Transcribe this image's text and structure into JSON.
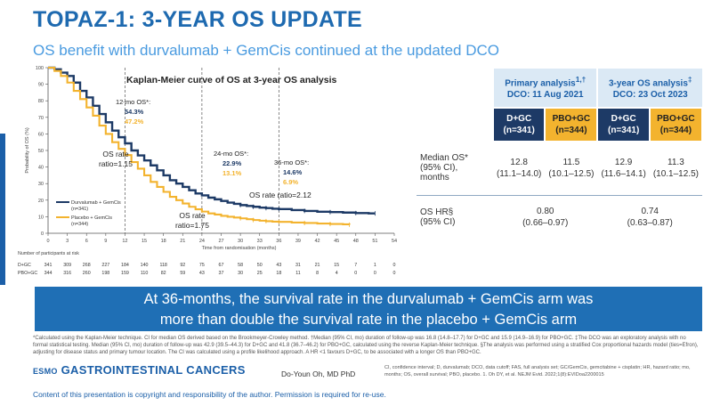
{
  "slide": {
    "title": "TOPAZ-1: 3-YEAR OS UPDATE",
    "subtitle": "OS benefit with durvalumab + GemCis continued at the updated DCO",
    "banner_line1": "At 36-months, the survival rate in the durvalumab + GemCis arm was",
    "banner_line2": "more than double the survival rate in the placebo + GemCis arm",
    "footnote": "*Calculated using the Kaplan-Meier technique. CI for median OS derived based on the Brookmeyer-Crowley method. †Median (95% CI, mo) duration of follow-up was 16.8 (14.8–17.7) for D+GC and 15.9 (14.9–16.9) for PBO+GC. ‡The DCO was an exploratory analysis with no formal statistical testing. Median (95% CI, mo) duration of follow-up was 42.9 (39.5–44.3) for D+GC and 41.8 (36.7–46.2) for PBO+GC, calculated using the reverse Kaplan-Meier technique. §The analysis was performed using a stratified Cox proportional hazards model (ties=Efron), adjusting for disease status and primary tumour location. The CI was calculated using a profile likelihood approach. A HR <1 favours D+GC, to be associated with a longer OS than PBO+GC.",
    "brand_prefix": "ESMO",
    "brand_name": "GASTROINTESTINAL CANCERS",
    "presenter": "Do-Youn Oh, MD PhD",
    "abbreviations": "CI, confidence interval; D, durvalumab; DCO, data cutoff; FAS, full analysis set; GC/GemCis, gemcitabine + cisplatin; HR, hazard ratio; mo, months; OS, overall survival; PBO, placebo. 1. Oh DY, et al. NEJM Evid. 2022;1(8):EVIDoa2200015",
    "copyright": "Content of this presentation is copyright and responsibility of the author. Permission is required for re-use."
  },
  "colors": {
    "durvalumab": "#1d3a66",
    "placebo": "#f3b32e",
    "title": "#1e6ab0",
    "banner": "#1f6fb5"
  },
  "chart_data": {
    "type": "line",
    "title": "Kaplan-Meier curve of OS at 3-year OS analysis",
    "xlabel": "Time from randomisation (months)",
    "ylabel": "Probability of OS (%)",
    "xlim": [
      0,
      54
    ],
    "ylim": [
      0,
      100
    ],
    "x_ticks": [
      0,
      3,
      6,
      9,
      12,
      15,
      18,
      21,
      24,
      27,
      30,
      33,
      36,
      39,
      42,
      45,
      48,
      51,
      54
    ],
    "y_ticks": [
      0,
      10,
      20,
      30,
      40,
      50,
      60,
      70,
      80,
      90,
      100
    ],
    "series": [
      {
        "name": "Durvalumab + GemCis",
        "n": "(n=341)",
        "color": "#1d3a66",
        "points": [
          [
            0,
            100
          ],
          [
            1,
            99
          ],
          [
            2,
            97
          ],
          [
            3,
            95
          ],
          [
            4,
            91
          ],
          [
            5,
            86
          ],
          [
            6,
            82
          ],
          [
            7,
            77
          ],
          [
            8,
            72
          ],
          [
            9,
            67
          ],
          [
            10,
            62
          ],
          [
            11,
            58
          ],
          [
            12,
            54.3
          ],
          [
            13,
            50
          ],
          [
            14,
            47
          ],
          [
            15,
            44
          ],
          [
            16,
            41
          ],
          [
            17,
            38
          ],
          [
            18,
            35
          ],
          [
            19,
            32
          ],
          [
            20,
            30
          ],
          [
            21,
            28
          ],
          [
            22,
            26
          ],
          [
            23,
            24
          ],
          [
            24,
            22.9
          ],
          [
            25,
            21.5
          ],
          [
            26,
            20.5
          ],
          [
            27,
            19.5
          ],
          [
            28,
            18.5
          ],
          [
            29,
            17.8
          ],
          [
            30,
            17
          ],
          [
            31,
            16.5
          ],
          [
            32,
            16
          ],
          [
            33,
            15.5
          ],
          [
            34,
            15.2
          ],
          [
            35,
            14.8
          ],
          [
            36,
            14.6
          ],
          [
            38,
            14
          ],
          [
            40,
            13.5
          ],
          [
            42,
            13
          ],
          [
            44,
            12.8
          ],
          [
            46,
            12.5
          ],
          [
            48,
            12.2
          ],
          [
            50,
            12
          ],
          [
            51,
            12
          ]
        ]
      },
      {
        "name": "Placebo + GemCis",
        "n": "(n=344)",
        "color": "#f3b32e",
        "points": [
          [
            0,
            100
          ],
          [
            1,
            98
          ],
          [
            2,
            95
          ],
          [
            3,
            91
          ],
          [
            4,
            86
          ],
          [
            5,
            81
          ],
          [
            6,
            76
          ],
          [
            7,
            71
          ],
          [
            8,
            65
          ],
          [
            9,
            60
          ],
          [
            10,
            55
          ],
          [
            11,
            51
          ],
          [
            12,
            47.2
          ],
          [
            13,
            43
          ],
          [
            14,
            39
          ],
          [
            15,
            35
          ],
          [
            16,
            31
          ],
          [
            17,
            28
          ],
          [
            18,
            25
          ],
          [
            19,
            22
          ],
          [
            20,
            20
          ],
          [
            21,
            18
          ],
          [
            22,
            16
          ],
          [
            23,
            14.5
          ],
          [
            24,
            13.1
          ],
          [
            25,
            12
          ],
          [
            26,
            11.3
          ],
          [
            27,
            10.5
          ],
          [
            28,
            10
          ],
          [
            29,
            9.5
          ],
          [
            30,
            9
          ],
          [
            31,
            8.5
          ],
          [
            32,
            8
          ],
          [
            33,
            7.6
          ],
          [
            34,
            7.3
          ],
          [
            35,
            7
          ],
          [
            36,
            6.9
          ],
          [
            38,
            6.5
          ],
          [
            40,
            6.2
          ],
          [
            42,
            5.9
          ],
          [
            44,
            5.6
          ],
          [
            46,
            5.4
          ],
          [
            47,
            5.2
          ]
        ]
      }
    ],
    "annotations": [
      {
        "label": "12-mo OS*:",
        "d": "54.3%",
        "p": "47.2%"
      },
      {
        "label": "24-mo OS*:",
        "d": "22.9%",
        "p": "13.1%"
      },
      {
        "label": "36-mo OS*:",
        "d": "14.6%",
        "p": "6.9%"
      }
    ],
    "rate_ratios": [
      {
        "line1": "OS rate",
        "line2": "ratio=1.15"
      },
      {
        "line1": "OS rate",
        "line2": "ratio=1.75"
      },
      {
        "line1": "OS rate ratio=2.12",
        "line2": ""
      }
    ],
    "risk_table": {
      "title": "Number of participants at risk",
      "rows": [
        {
          "label": "D+GC",
          "values": [
            341,
            309,
            268,
            227,
            184,
            140,
            118,
            92,
            75,
            67,
            58,
            50,
            43,
            31,
            21,
            15,
            7,
            1,
            0
          ]
        },
        {
          "label": "PBO+GC",
          "values": [
            344,
            316,
            260,
            198,
            159,
            110,
            82,
            59,
            43,
            37,
            30,
            25,
            18,
            11,
            8,
            4,
            0,
            0,
            0
          ]
        }
      ]
    }
  },
  "table": {
    "col_groups": [
      {
        "line1": "Primary analysis",
        "sup": "1,†",
        "line2": "DCO: 11 Aug 2021"
      },
      {
        "line1": "3-year OS analysis",
        "sup": "‡",
        "line2": "DCO: 23 Oct 2023"
      }
    ],
    "arms": [
      {
        "line1": "D+GC",
        "line2": "(n=341)",
        "style": "blue"
      },
      {
        "line1": "PBO+GC",
        "line2": "(n=344)",
        "style": "gold"
      },
      {
        "line1": "D+GC",
        "line2": "(n=341)",
        "style": "blue"
      },
      {
        "line1": "PBO+GC",
        "line2": "(n=344)",
        "style": "gold"
      }
    ],
    "median_os": {
      "label1": "Median OS*",
      "label2": "(95% CI),",
      "label3": "months",
      "values": [
        {
          "v": "12.8",
          "ci": "(11.1–14.0)"
        },
        {
          "v": "11.5",
          "ci": "(10.1–12.5)"
        },
        {
          "v": "12.9",
          "ci": "(11.6–14.1)"
        },
        {
          "v": "11.3",
          "ci": "(10.1–12.5)"
        }
      ]
    },
    "os_hr": {
      "label1": "OS HR§",
      "label2": "(95% CI)",
      "values": [
        {
          "v": "0.80",
          "ci": "(0.66–0.97)"
        },
        {
          "v": "0.74",
          "ci": "(0.63–0.87)"
        }
      ]
    }
  }
}
